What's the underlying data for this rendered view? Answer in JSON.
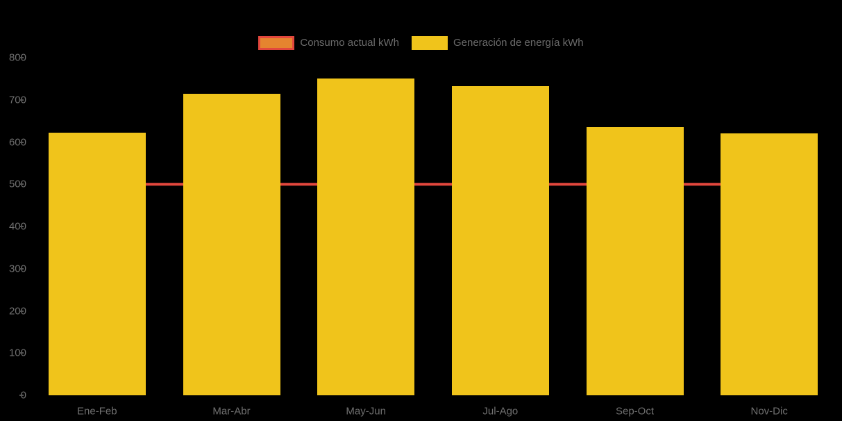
{
  "chart_data": {
    "type": "bar",
    "title": "",
    "categories": [
      "Ene-Feb",
      "Mar-Abr",
      "May-Jun",
      "Jul-Ago",
      "Sep-Oct",
      "Nov-Dic"
    ],
    "series": [
      {
        "name": "Consumo actual kWh",
        "type": "line",
        "values": [
          500,
          500,
          500,
          500,
          500,
          500
        ]
      },
      {
        "name": "Generación de energía kWh",
        "type": "bar",
        "values": [
          622,
          715,
          750,
          733,
          635,
          620
        ]
      }
    ],
    "xlabel": "",
    "ylabel": "",
    "ylim": [
      0,
      800
    ],
    "yticks": [
      0,
      100,
      200,
      300,
      400,
      500,
      600,
      700,
      800
    ],
    "grid": false,
    "legend_position": "top-center",
    "colors": {
      "bar_fill": "#f0c41b",
      "line_stroke": "#e2473d",
      "marker_fill": "#e5842f",
      "marker_stroke": "#e2473d",
      "axis_text": "#6f6f6f",
      "legend_text": "#6b6b6b",
      "tick_mark": "#555555",
      "background": "#000000"
    }
  }
}
